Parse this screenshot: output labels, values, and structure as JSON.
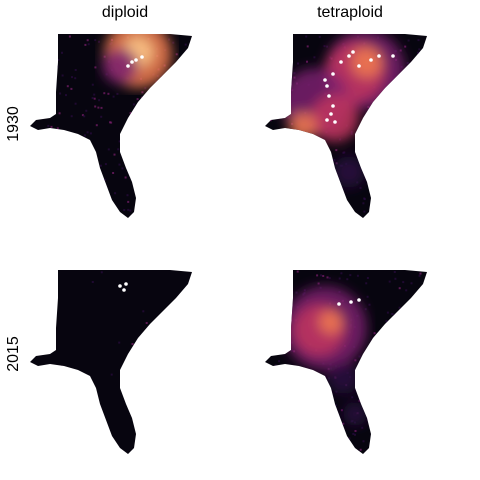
{
  "columns": [
    "diploid",
    "tetraploid"
  ],
  "rows": [
    "1930",
    "2015"
  ],
  "colors": {
    "background_land": "#07050f",
    "low": "#2a0b40",
    "mid": "#7a1f6e",
    "midhigh": "#c2375f",
    "high": "#f07b4f",
    "peak": "#fcc98a",
    "points": "#ffffff"
  },
  "panels": [
    {
      "column": "diploid",
      "row": "1930",
      "hotspot": "northeast",
      "intensity": 0.9
    },
    {
      "column": "tetraploid",
      "row": "1930",
      "hotspot": "diagonal-band",
      "intensity": 1.0
    },
    {
      "column": "diploid",
      "row": "2015",
      "hotspot": "none",
      "intensity": 0.05
    },
    {
      "column": "tetraploid",
      "row": "2015",
      "hotspot": "southwest",
      "intensity": 0.85
    }
  ]
}
